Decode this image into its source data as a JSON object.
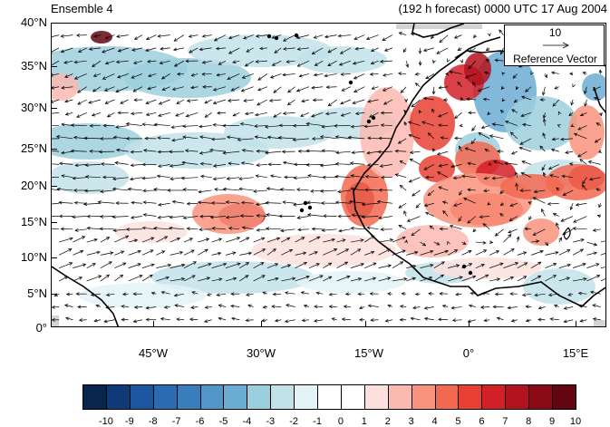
{
  "header": {
    "title_left": "Ensemble 4",
    "title_right": "(192 h forecast) 0000 UTC 17 Aug 2004"
  },
  "map": {
    "projection": "cylindrical equidistant",
    "lon_range": [
      -57,
      19
    ],
    "lat_range": [
      0,
      40
    ],
    "lat_labels": [
      "40°N",
      "35°N",
      "30°N",
      "25°N",
      "20°N",
      "15°N",
      "10°N",
      "5°N",
      "0°"
    ],
    "lon_labels": [
      "45°W",
      "30°W",
      "15°W",
      "0°",
      "15°E"
    ],
    "fields": [
      "shaded anomaly",
      "wind vectors"
    ],
    "coastline_color": "#000000",
    "missing_color": "#d3d3d3"
  },
  "reference_vector": {
    "value": "10",
    "label": "Reference Vector"
  },
  "colorbar": {
    "labels": [
      "-10",
      "-9",
      "-8",
      "-7",
      "-6",
      "-5",
      "-4",
      "-3",
      "-2",
      "-1",
      "0",
      "1",
      "2",
      "3",
      "4",
      "5",
      "6",
      "7",
      "8",
      "9",
      "10"
    ],
    "colors": [
      "#08254e",
      "#0f3a78",
      "#1d56a0",
      "#2a6bb1",
      "#3a7dbd",
      "#5397c9",
      "#6cadd3",
      "#9ccfdd",
      "#c2e2ea",
      "#e3f2f7",
      "#ffffff",
      "#ffffff",
      "#fde0dd",
      "#fbbab0",
      "#f9937d",
      "#f36950",
      "#e84133",
      "#d21f28",
      "#b3121f",
      "#8a0b17",
      "#640610"
    ]
  }
}
